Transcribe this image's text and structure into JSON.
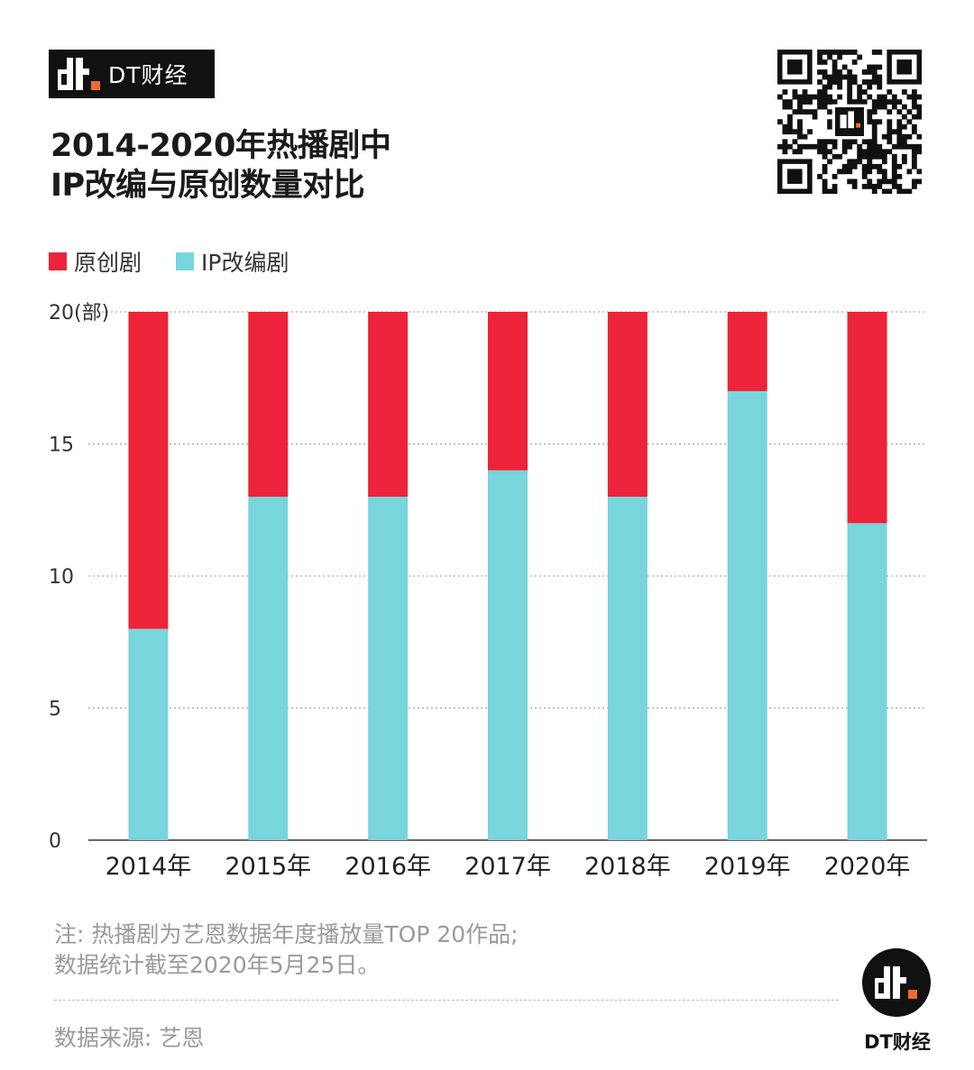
{
  "brand": {
    "name": "DT财经",
    "logo_text": "DT财经"
  },
  "title_lines": [
    "2014-2020年热播剧中",
    "IP改编与原创数量对比"
  ],
  "legend": [
    {
      "label": "原创剧",
      "color": "#ec2339"
    },
    {
      "label": "IP改编剧",
      "color": "#78d5dc"
    }
  ],
  "note_lines": [
    "注: 热播剧为艺恩数据年度播放量TOP 20作品;",
    "数据统计截至2020年5月25日。"
  ],
  "source": "数据来源: 艺恩",
  "chart_data": {
    "type": "bar",
    "stacked": true,
    "categories": [
      "2014年",
      "2015年",
      "2016年",
      "2017年",
      "2018年",
      "2019年",
      "2020年"
    ],
    "series": [
      {
        "name": "IP改编剧",
        "color": "#78d5dc",
        "values": [
          8,
          13,
          13,
          14,
          13,
          17,
          12
        ]
      },
      {
        "name": "原创剧",
        "color": "#ec2339",
        "values": [
          12,
          7,
          7,
          6,
          7,
          3,
          8
        ]
      }
    ],
    "ylim": [
      0,
      20
    ],
    "yticks": [
      0,
      5,
      10,
      15,
      20
    ],
    "ylabel": "(部)",
    "grid": true
  }
}
